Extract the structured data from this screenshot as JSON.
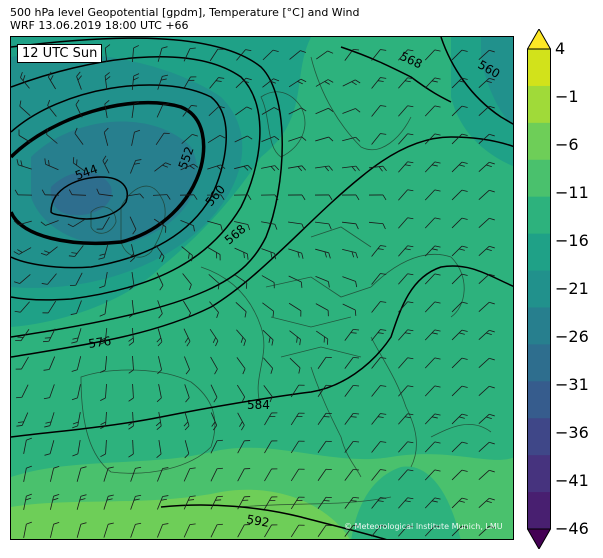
{
  "header": {
    "line1": "500 hPa level Geopotential [gpdm], Temperature [°C] and Wind",
    "line2": "WRF 13.06.2019 18:00 UTC +66"
  },
  "time_label": "12 UTC Sun",
  "credit": "© Meteorological Institute Munich, LMU",
  "contour_labels": [
    "544",
    "552",
    "560",
    "568",
    "576",
    "584",
    "592",
    "568",
    "560"
  ],
  "colorbar": {
    "ticks": [
      "4",
      "−1",
      "−6",
      "−11",
      "−16",
      "−21",
      "−26",
      "−31",
      "−36",
      "−41",
      "−46"
    ],
    "colors": [
      "#fde725",
      "#d2e21b",
      "#a0da39",
      "#6ece58",
      "#4ac16d",
      "#2db27d",
      "#1fa187",
      "#21918c",
      "#277f8e",
      "#2e6e8e",
      "#365c8d",
      "#3f4788",
      "#46337e",
      "#481f70",
      "#440154"
    ]
  },
  "colors": {
    "warm": "#6ece58",
    "mid": "#4ac16d",
    "base": "#2db27d",
    "cool": "#1fa187",
    "cold": "#21918c",
    "colder": "#277f8e",
    "coldest": "#2e6e8e"
  }
}
